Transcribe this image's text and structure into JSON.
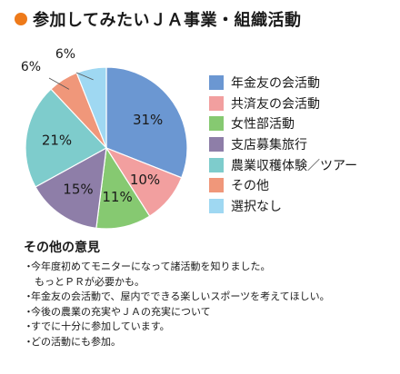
{
  "title": "参加してみたいＪＡ事業・組織活動",
  "chart_data": {
    "type": "pie",
    "categories": [
      "年金友の会活動",
      "共済友の会活動",
      "女性部活動",
      "支店募集旅行",
      "農業収穫体験／ツアー",
      "その他",
      "選択なし"
    ],
    "values": [
      31,
      10,
      11,
      15,
      21,
      6,
      6
    ],
    "value_labels": [
      "31%",
      "10%",
      "11%",
      "15%",
      "21%",
      "6%",
      "6%"
    ],
    "colors": [
      "#6b97d2",
      "#f29f9f",
      "#86c971",
      "#8e7ea8",
      "#7ecccc",
      "#f0977a",
      "#9fd8f2"
    ],
    "start": "12 o'clock, clockwise",
    "legend_position": "right"
  },
  "others": {
    "title": "その他の意見",
    "items": [
      "今年度初めてモニターになって諸活動を知りました。",
      "もっとＰＲが必要かも。",
      "年金友の会活動で、屋内でできる楽しいスポーツを考えてほしい。",
      "今後の農業の充実やＪＡの充実について",
      "すでに十分に参加しています。",
      "どの活動にも参加。"
    ]
  }
}
